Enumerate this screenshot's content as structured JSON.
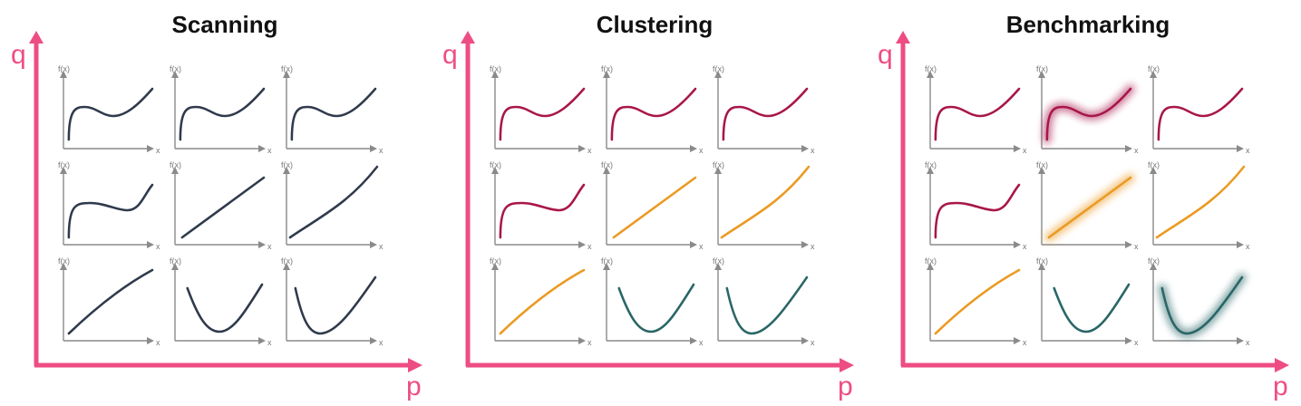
{
  "colors": {
    "main_axis": "#ee4d84",
    "mini_axis": "#8a8a8a",
    "curve_default": "#2f3a4c",
    "cluster_a": "#a8164a",
    "cluster_b": "#eb9a22",
    "cluster_c": "#2a6667"
  },
  "labels": {
    "q": "q",
    "p": "p",
    "fx": "f(x)",
    "x": "x"
  },
  "panels": [
    {
      "title": "Scanning",
      "cells": [
        {
          "shape": "wave",
          "color": "curve_default",
          "glow": false
        },
        {
          "shape": "wave",
          "color": "curve_default",
          "glow": false
        },
        {
          "shape": "wave",
          "color": "curve_default",
          "glow": false
        },
        {
          "shape": "wave2",
          "color": "curve_default",
          "glow": false
        },
        {
          "shape": "line",
          "color": "curve_default",
          "glow": false
        },
        {
          "shape": "convex",
          "color": "curve_default",
          "glow": false
        },
        {
          "shape": "concave",
          "color": "curve_default",
          "glow": false
        },
        {
          "shape": "valley",
          "color": "curve_default",
          "glow": false
        },
        {
          "shape": "valley2",
          "color": "curve_default",
          "glow": false
        }
      ]
    },
    {
      "title": "Clustering",
      "cells": [
        {
          "shape": "wave",
          "color": "cluster_a",
          "glow": false
        },
        {
          "shape": "wave",
          "color": "cluster_a",
          "glow": false
        },
        {
          "shape": "wave",
          "color": "cluster_a",
          "glow": false
        },
        {
          "shape": "wave2",
          "color": "cluster_a",
          "glow": false
        },
        {
          "shape": "line",
          "color": "cluster_b",
          "glow": false
        },
        {
          "shape": "convex",
          "color": "cluster_b",
          "glow": false
        },
        {
          "shape": "concave",
          "color": "cluster_b",
          "glow": false
        },
        {
          "shape": "valley",
          "color": "cluster_c",
          "glow": false
        },
        {
          "shape": "valley2",
          "color": "cluster_c",
          "glow": false
        }
      ]
    },
    {
      "title": "Benchmarking",
      "cells": [
        {
          "shape": "wave",
          "color": "cluster_a",
          "glow": false
        },
        {
          "shape": "wave",
          "color": "cluster_a",
          "glow": true
        },
        {
          "shape": "wave",
          "color": "cluster_a",
          "glow": false
        },
        {
          "shape": "wave2",
          "color": "cluster_a",
          "glow": false
        },
        {
          "shape": "line",
          "color": "cluster_b",
          "glow": true
        },
        {
          "shape": "convex",
          "color": "cluster_b",
          "glow": false
        },
        {
          "shape": "concave",
          "color": "cluster_b",
          "glow": false
        },
        {
          "shape": "valley",
          "color": "cluster_c",
          "glow": false
        },
        {
          "shape": "valley2",
          "color": "cluster_c",
          "glow": true
        }
      ]
    }
  ]
}
